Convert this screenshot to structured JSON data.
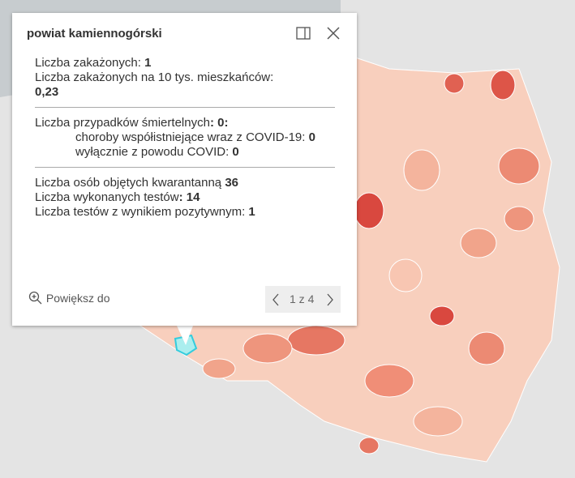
{
  "popup": {
    "title": "powiat kamiennogórski",
    "rows": [
      {
        "label": "Liczba zakażonych:",
        "value": "1"
      },
      {
        "label": "Liczba zakażonych na 10 tys. mieszkańców:",
        "value": "0,23"
      },
      {
        "label": "Liczba przypadków śmiertelnych",
        "value": ": 0:"
      },
      {
        "label": "choroby współistniejące wraz z COVID-19:",
        "value": "0"
      },
      {
        "label": "wyłącznie z powodu COVID:",
        "value": "0"
      },
      {
        "label": "Liczba osób objętych kwarantanną",
        "value": "36"
      },
      {
        "label": "Liczba wykonanych testów",
        "value": ": 14"
      },
      {
        "label": "Liczba testów z wynikiem pozytywnym:",
        "value": "1"
      }
    ],
    "zoom": "Powiększ do",
    "pager": "1 z 4"
  }
}
